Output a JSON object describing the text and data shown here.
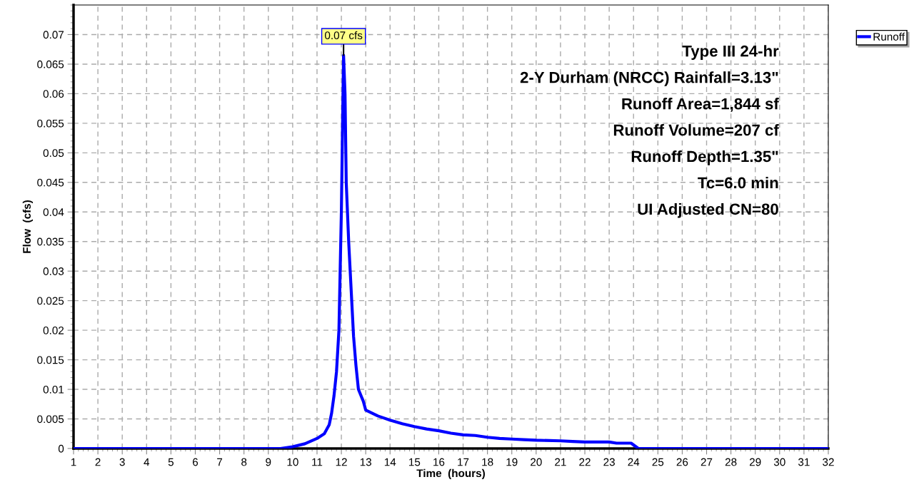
{
  "chart_data": {
    "type": "line",
    "xlabel": "Time  (hours)",
    "ylabel": "Flow  (cfs)",
    "xlim": [
      1,
      32
    ],
    "xticks": [
      1,
      2,
      3,
      4,
      5,
      6,
      7,
      8,
      9,
      10,
      11,
      12,
      13,
      14,
      15,
      16,
      17,
      18,
      19,
      20,
      21,
      22,
      23,
      24,
      25,
      26,
      27,
      28,
      29,
      30,
      31,
      32
    ],
    "ylim": [
      0,
      0.075
    ],
    "yticks": [
      0,
      0.005,
      0.01,
      0.015,
      0.02,
      0.025,
      0.03,
      0.035,
      0.04,
      0.045,
      0.05,
      0.055,
      0.06,
      0.065,
      0.07
    ],
    "grid": true,
    "legend": "top right",
    "line_style": "solid",
    "marker": "none",
    "series": [
      {
        "name": "Runoff",
        "color": "#0000ff",
        "x": [
          1,
          9.5,
          10,
          10.5,
          11,
          11.3,
          11.5,
          11.6,
          11.7,
          11.8,
          11.9,
          11.95,
          12.0,
          12.05,
          12.09,
          12.15,
          12.2,
          12.3,
          12.4,
          12.5,
          12.6,
          12.7,
          12.9,
          13,
          13.5,
          14,
          14.5,
          15,
          15.5,
          16,
          16.5,
          17,
          17.5,
          18,
          18.5,
          19,
          19.5,
          20,
          21,
          21.5,
          22,
          23,
          23.3,
          23.9,
          24.2,
          32
        ],
        "values": [
          0,
          0,
          0.0003,
          0.0008,
          0.0017,
          0.0025,
          0.004,
          0.006,
          0.009,
          0.013,
          0.02,
          0.03,
          0.04,
          0.055,
          0.0665,
          0.06,
          0.045,
          0.035,
          0.027,
          0.019,
          0.014,
          0.01,
          0.008,
          0.0065,
          0.0055,
          0.0048,
          0.0042,
          0.0037,
          0.0033,
          0.003,
          0.0026,
          0.0023,
          0.0022,
          0.0019,
          0.0017,
          0.0016,
          0.0015,
          0.0014,
          0.0013,
          0.0012,
          0.0011,
          0.0011,
          0.0009,
          0.0009,
          0,
          0
        ]
      }
    ],
    "annotations": [
      {
        "text": "0.07 cfs",
        "x": 12.09,
        "y": 0.0665
      },
      "Type III 24-hr",
      "2-Y Durham (NRCC) Rainfall=3.13\"",
      "Runoff Area=1,844 sf",
      "Runoff Volume=207 cf",
      "Runoff Depth=1.35\"",
      "Tc=6.0 min",
      "UI Adjusted CN=80"
    ]
  }
}
